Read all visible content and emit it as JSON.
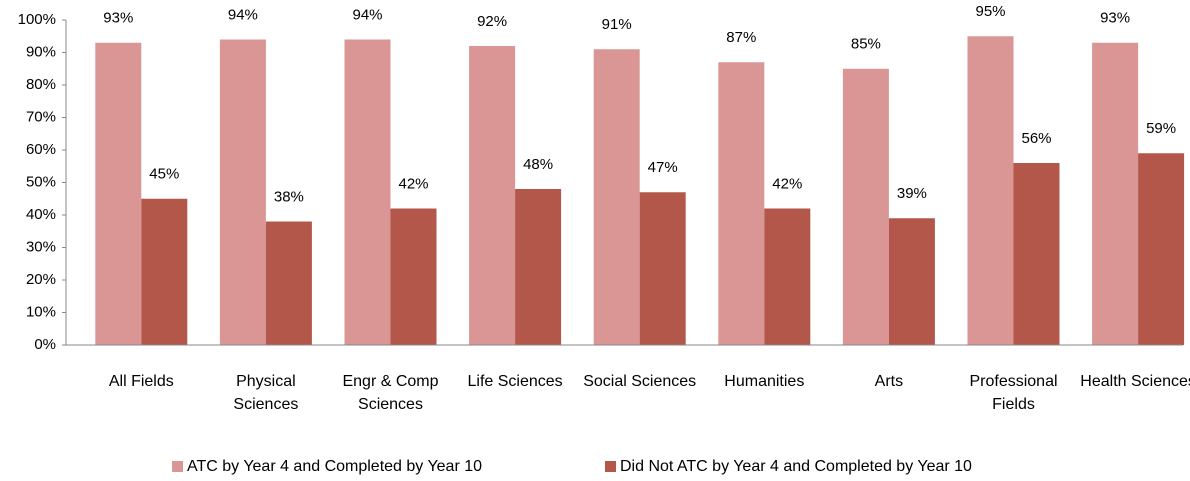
{
  "chart_data": {
    "type": "bar",
    "categories": [
      "All Fields",
      "Physical Sciences",
      "Engr & Comp Sciences",
      "Life Sciences",
      "Social Sciences",
      "Humanities",
      "Arts",
      "Professional Fields",
      "Health Sciences"
    ],
    "series": [
      {
        "name": "ATC by Year 4 and Completed by Year 10",
        "color": "#d99694",
        "values": [
          93,
          94,
          94,
          92,
          91,
          87,
          85,
          95,
          93
        ],
        "value_labels": [
          "93%",
          "94%",
          "94%",
          "92%",
          "91%",
          "87%",
          "85%",
          "95%",
          "93%"
        ]
      },
      {
        "name": "Did Not ATC by Year 4 and Completed by Year 10",
        "color": "#b3574a",
        "values": [
          45,
          38,
          42,
          48,
          47,
          42,
          39,
          56,
          59
        ],
        "value_labels": [
          "45%",
          "38%",
          "42%",
          "48%",
          "47%",
          "42%",
          "39%",
          "56%",
          "59%"
        ]
      }
    ],
    "ylim": [
      0,
      100
    ],
    "yticks": [
      {
        "value": 0,
        "label": "0%"
      },
      {
        "value": 10,
        "label": "10%"
      },
      {
        "value": 20,
        "label": "20%"
      },
      {
        "value": 30,
        "label": "30%"
      },
      {
        "value": 40,
        "label": "40%"
      },
      {
        "value": 50,
        "label": "50%"
      },
      {
        "value": 60,
        "label": "60%"
      },
      {
        "value": 70,
        "label": "70%"
      },
      {
        "value": 80,
        "label": "80%"
      },
      {
        "value": 90,
        "label": "90%"
      },
      {
        "value": 100,
        "label": "100%"
      }
    ],
    "legend": "bottom"
  }
}
